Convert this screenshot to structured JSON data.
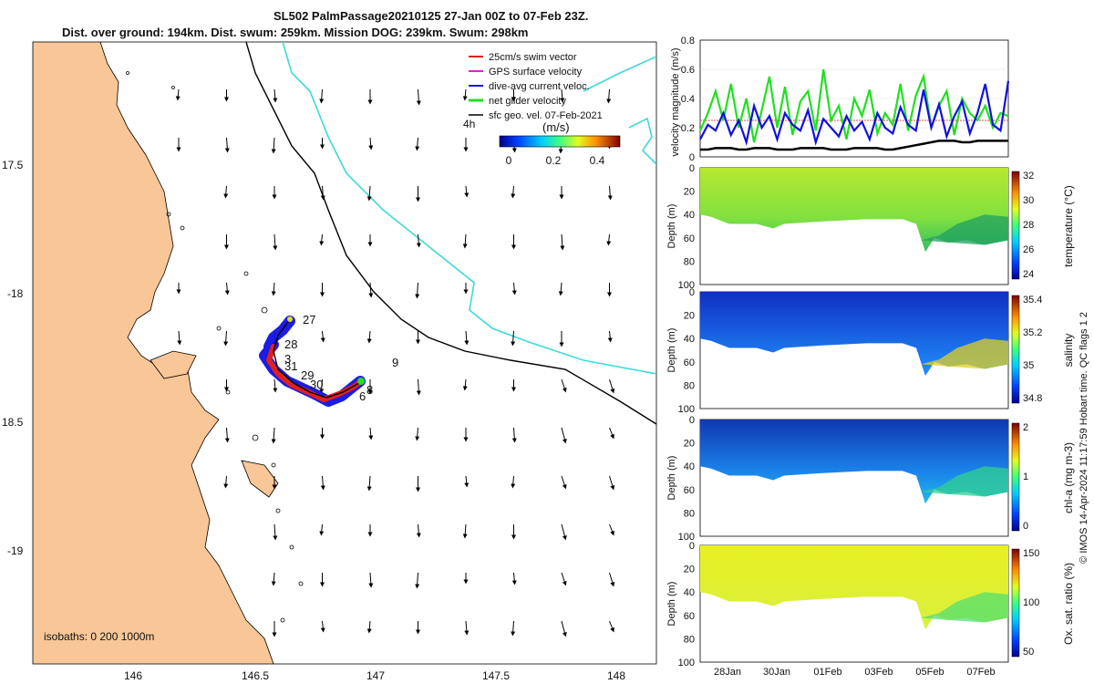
{
  "header": {
    "line1": "SL502 PalmPassage20210125 27-Jan 00Z to 07-Feb 23Z.",
    "line2": "Dist. over ground: 194km. Dist. swum: 259km. Mission DOG: 239km. Swum: 298km"
  },
  "map": {
    "lon_ticks": [
      "146",
      "146.5",
      "147",
      "147.5",
      "148"
    ],
    "lat_ticks": [
      "17.5",
      "-18",
      "18.5",
      "-19"
    ],
    "legend": [
      {
        "label": "25cm/s swim vector",
        "color": "#e02020"
      },
      {
        "label": "GPS surface velocity",
        "color": "#e020e0"
      },
      {
        "label": "dive-avg current veloc.",
        "color": "#1010e0"
      },
      {
        "label": "net glider velocity",
        "color": "#20e020"
      },
      {
        "label": "sfc geo. vel. 07-Feb-2021",
        "color": "#000000"
      }
    ],
    "legend_4h": "4h",
    "colorbar_label": "(m/s)",
    "colorbar_ticks": [
      "0",
      "0.2",
      "0.4"
    ],
    "isobaths_label": "isobaths: 0  200  1000m",
    "track_labels": [
      "27",
      "28",
      "3",
      "29",
      "30",
      "31",
      "8",
      "6",
      "9"
    ],
    "colors": {
      "land": "#f8c697",
      "coast": "#000000",
      "isobath_200": "#000000",
      "isobath_1000": "#3fd9d9"
    }
  },
  "chart_data": [
    {
      "type": "line",
      "title": "",
      "ylabel": "velocity magnitude (m/s)",
      "ylim": [
        0,
        0.8
      ],
      "yticks": [
        "0.8",
        "0.6",
        "0.4",
        "0.2",
        "0"
      ],
      "series": [
        {
          "color": "#1010e0",
          "values": [
            0.12,
            0.22,
            0.18,
            0.3,
            0.15,
            0.25,
            0.1,
            0.35,
            0.2,
            0.28,
            0.12,
            0.3,
            0.22,
            0.18,
            0.32,
            0.1,
            0.26,
            0.2,
            0.14,
            0.28,
            0.18,
            0.24,
            0.12,
            0.3,
            0.2,
            0.16,
            0.34,
            0.22,
            0.18,
            0.46,
            0.2,
            0.36,
            0.14,
            0.28,
            0.38,
            0.16,
            0.3,
            0.5,
            0.22,
            0.18,
            0.52
          ]
        },
        {
          "color": "#20e020",
          "values": [
            0.18,
            0.3,
            0.45,
            0.25,
            0.5,
            0.2,
            0.4,
            0.1,
            0.32,
            0.55,
            0.2,
            0.48,
            0.15,
            0.38,
            0.45,
            0.18,
            0.6,
            0.25,
            0.35,
            0.12,
            0.4,
            0.28,
            0.46,
            0.16,
            0.3,
            0.22,
            0.5,
            0.18,
            0.42,
            0.55,
            0.2,
            0.35,
            0.45,
            0.15,
            0.4,
            0.3,
            0.25,
            0.35,
            0.2,
            0.3,
            0.28
          ]
        },
        {
          "color": "#000000",
          "values": [
            0.05,
            0.05,
            0.06,
            0.06,
            0.06,
            0.05,
            0.05,
            0.06,
            0.06,
            0.06,
            0.05,
            0.05,
            0.05,
            0.06,
            0.06,
            0.06,
            0.06,
            0.05,
            0.05,
            0.05,
            0.06,
            0.06,
            0.06,
            0.06,
            0.05,
            0.05,
            0.06,
            0.07,
            0.08,
            0.09,
            0.1,
            0.11,
            0.11,
            0.11,
            0.1,
            0.1,
            0.11,
            0.11,
            0.11,
            0.11,
            0.11
          ]
        }
      ]
    },
    {
      "type": "heatmap",
      "ylabel": "Depth (m)",
      "cbar_label": "temperature (°C)",
      "cbar_ticks": [
        "32",
        "30",
        "28",
        "26",
        "24"
      ],
      "yticks": [
        "0",
        "20",
        "40",
        "60",
        "80",
        "100"
      ]
    },
    {
      "type": "heatmap",
      "ylabel": "Depth (m)",
      "cbar_label": "salinity",
      "cbar_ticks": [
        "35.4",
        "35.2",
        "35",
        "34.8"
      ],
      "yticks": [
        "0",
        "20",
        "40",
        "60",
        "80",
        "100"
      ]
    },
    {
      "type": "heatmap",
      "ylabel": "Depth (m)",
      "cbar_label": "chl-a (mg m-3)",
      "cbar_ticks": [
        "2",
        "1",
        "0"
      ],
      "yticks": [
        "0",
        "20",
        "40",
        "60",
        "80",
        "100"
      ]
    },
    {
      "type": "heatmap",
      "ylabel": "Depth (m)",
      "cbar_label": "Ox. sat. ratio (%)",
      "cbar_ticks": [
        "150",
        "100",
        "50"
      ],
      "yticks": [
        "0",
        "20",
        "40",
        "60",
        "80",
        "100"
      ]
    }
  ],
  "time_ticks": [
    "28Jan",
    "30Jan",
    "01Feb",
    "03Feb",
    "05Feb",
    "07Feb"
  ],
  "side_note": "© IMOS 14-Apr-2024 11:17:59 Hobart time. QC flags 1  2"
}
